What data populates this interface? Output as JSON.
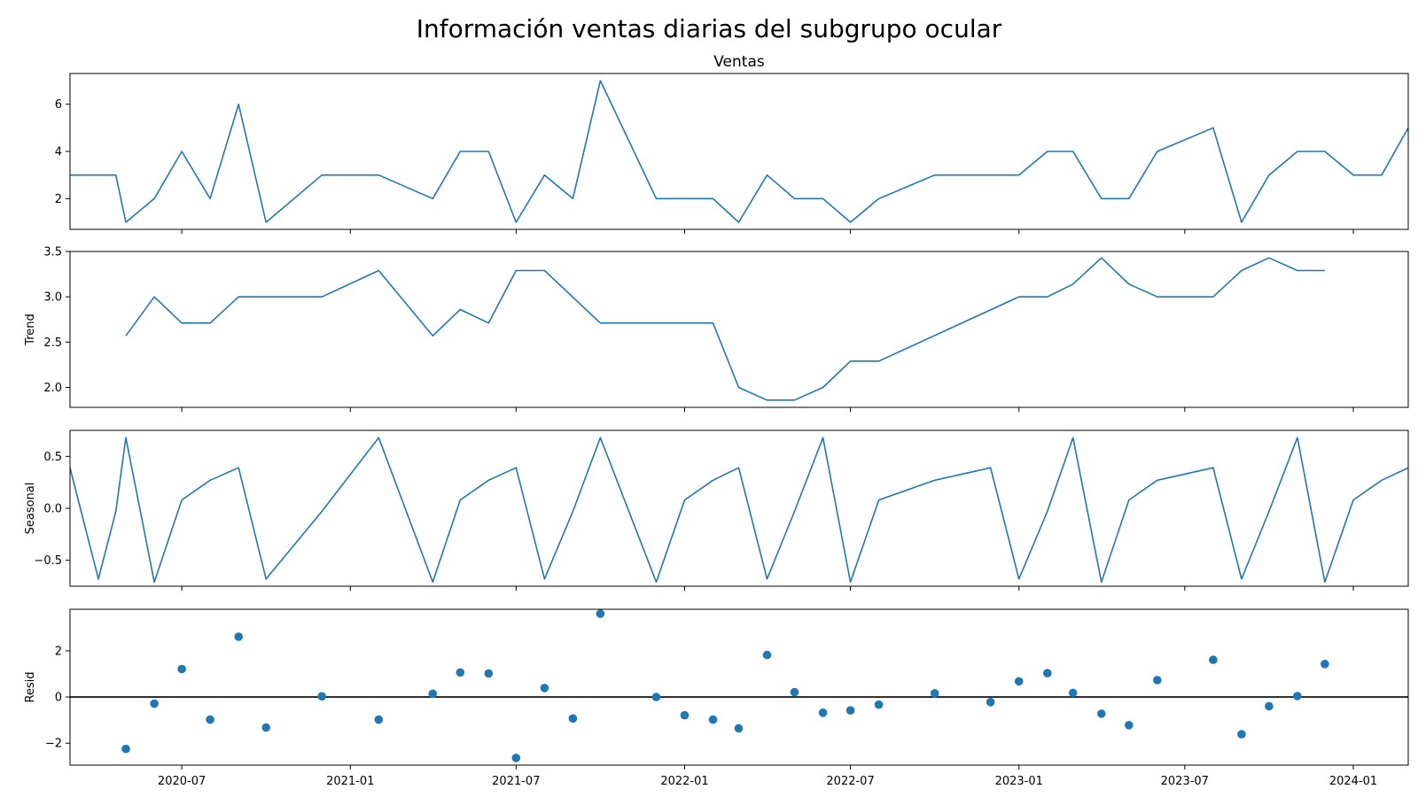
{
  "suptitle": "Información ventas diarias del subgrupo ocular",
  "colors": {
    "series": "#1f77b4",
    "axis": "#000000",
    "background": "#ffffff"
  },
  "chart_data": {
    "type": "line",
    "x_axis": {
      "kind": "date",
      "range": [
        "2020-03-01",
        "2024-03-01"
      ],
      "ticks": [
        "2020-07-01",
        "2021-01-01",
        "2021-07-01",
        "2022-01-01",
        "2022-07-01",
        "2023-01-01",
        "2023-07-01",
        "2024-01-01"
      ],
      "tick_labels": [
        "2020-07",
        "2021-01",
        "2021-07",
        "2022-01",
        "2022-07",
        "2023-01",
        "2023-07",
        "2024-01"
      ]
    },
    "panels": [
      {
        "title": "Ventas",
        "ylabel": "",
        "type": "line",
        "ylim": [
          0.7,
          7.3
        ],
        "yticks": [
          2,
          4,
          6
        ],
        "ytick_labels": [
          "2",
          "4",
          "6"
        ],
        "points": [
          [
            "2020-03-01",
            3
          ],
          [
            "2020-03-31",
            3
          ],
          [
            "2020-04-20",
            3
          ],
          [
            "2020-05-01",
            1
          ],
          [
            "2020-06-01",
            2
          ],
          [
            "2020-07-01",
            4
          ],
          [
            "2020-08-01",
            2
          ],
          [
            "2020-09-01",
            6
          ],
          [
            "2020-10-01",
            1
          ],
          [
            "2020-12-01",
            3
          ],
          [
            "2021-02-01",
            3
          ],
          [
            "2021-04-01",
            2
          ],
          [
            "2021-05-01",
            4
          ],
          [
            "2021-06-01",
            4
          ],
          [
            "2021-07-01",
            1
          ],
          [
            "2021-08-01",
            3
          ],
          [
            "2021-09-01",
            2
          ],
          [
            "2021-10-01",
            7
          ],
          [
            "2021-12-01",
            2
          ],
          [
            "2022-01-01",
            2
          ],
          [
            "2022-02-01",
            2
          ],
          [
            "2022-03-01",
            1
          ],
          [
            "2022-04-01",
            3
          ],
          [
            "2022-05-01",
            2
          ],
          [
            "2022-06-01",
            2
          ],
          [
            "2022-07-01",
            1
          ],
          [
            "2022-08-01",
            2
          ],
          [
            "2022-10-01",
            3
          ],
          [
            "2022-12-01",
            3
          ],
          [
            "2023-01-01",
            3
          ],
          [
            "2023-02-01",
            4
          ],
          [
            "2023-03-01",
            4
          ],
          [
            "2023-04-01",
            2
          ],
          [
            "2023-05-01",
            2
          ],
          [
            "2023-06-01",
            4
          ],
          [
            "2023-08-01",
            5
          ],
          [
            "2023-09-01",
            1
          ],
          [
            "2023-10-01",
            3
          ],
          [
            "2023-11-01",
            4
          ],
          [
            "2023-12-01",
            4
          ],
          [
            "2024-01-01",
            3
          ],
          [
            "2024-02-01",
            3
          ],
          [
            "2024-03-01",
            5
          ]
        ]
      },
      {
        "title": "",
        "ylabel": "Trend",
        "type": "line",
        "ylim": [
          1.78,
          3.5
        ],
        "yticks": [
          2.0,
          2.5,
          3.0,
          3.5
        ],
        "ytick_labels": [
          "2.0",
          "2.5",
          "3.0",
          "3.5"
        ],
        "points": [
          [
            "2020-05-01",
            2.57
          ],
          [
            "2020-06-01",
            3.0
          ],
          [
            "2020-07-01",
            2.71
          ],
          [
            "2020-08-01",
            2.71
          ],
          [
            "2020-09-01",
            3.0
          ],
          [
            "2020-12-01",
            3.0
          ],
          [
            "2021-02-01",
            3.29
          ],
          [
            "2021-04-01",
            2.57
          ],
          [
            "2021-05-01",
            2.86
          ],
          [
            "2021-06-01",
            2.71
          ],
          [
            "2021-07-01",
            3.29
          ],
          [
            "2021-08-01",
            3.29
          ],
          [
            "2021-10-01",
            2.71
          ],
          [
            "2022-02-01",
            2.71
          ],
          [
            "2022-03-01",
            2.0
          ],
          [
            "2022-04-01",
            1.86
          ],
          [
            "2022-05-01",
            1.86
          ],
          [
            "2022-06-01",
            2.0
          ],
          [
            "2022-07-01",
            2.29
          ],
          [
            "2022-08-01",
            2.29
          ],
          [
            "2023-01-01",
            3.0
          ],
          [
            "2023-02-01",
            3.0
          ],
          [
            "2023-03-01",
            3.14
          ],
          [
            "2023-04-01",
            3.43
          ],
          [
            "2023-05-01",
            3.14
          ],
          [
            "2023-06-01",
            3.0
          ],
          [
            "2023-08-01",
            3.0
          ],
          [
            "2023-09-01",
            3.29
          ],
          [
            "2023-10-01",
            3.43
          ],
          [
            "2023-11-01",
            3.29
          ],
          [
            "2023-12-01",
            3.29
          ]
        ]
      },
      {
        "title": "",
        "ylabel": "Seasonal",
        "type": "line",
        "ylim": [
          -0.75,
          0.75
        ],
        "yticks": [
          -0.5,
          0.0,
          0.5
        ],
        "ytick_labels": [
          "−0.5",
          "0.0",
          "0.5"
        ],
        "points": [
          [
            "2020-03-01",
            0.39
          ],
          [
            "2020-04-01",
            -0.68
          ],
          [
            "2020-04-20",
            -0.03
          ],
          [
            "2020-05-01",
            0.68
          ],
          [
            "2020-06-01",
            -0.71
          ],
          [
            "2020-07-01",
            0.08
          ],
          [
            "2020-08-01",
            0.27
          ],
          [
            "2020-09-01",
            0.39
          ],
          [
            "2020-10-01",
            -0.68
          ],
          [
            "2020-12-01",
            -0.03
          ],
          [
            "2021-02-01",
            0.68
          ],
          [
            "2021-04-01",
            -0.71
          ],
          [
            "2021-05-01",
            0.08
          ],
          [
            "2021-06-01",
            0.27
          ],
          [
            "2021-07-01",
            0.39
          ],
          [
            "2021-08-01",
            -0.68
          ],
          [
            "2021-09-01",
            -0.03
          ],
          [
            "2021-10-01",
            0.68
          ],
          [
            "2021-12-01",
            -0.71
          ],
          [
            "2022-01-01",
            0.08
          ],
          [
            "2022-02-01",
            0.27
          ],
          [
            "2022-03-01",
            0.39
          ],
          [
            "2022-04-01",
            -0.68
          ],
          [
            "2022-05-01",
            -0.03
          ],
          [
            "2022-06-01",
            0.68
          ],
          [
            "2022-07-01",
            -0.71
          ],
          [
            "2022-08-01",
            0.08
          ],
          [
            "2022-10-01",
            0.27
          ],
          [
            "2022-12-01",
            0.39
          ],
          [
            "2023-01-01",
            -0.68
          ],
          [
            "2023-02-01",
            -0.03
          ],
          [
            "2023-03-01",
            0.68
          ],
          [
            "2023-04-01",
            -0.71
          ],
          [
            "2023-05-01",
            0.08
          ],
          [
            "2023-06-01",
            0.27
          ],
          [
            "2023-08-01",
            0.39
          ],
          [
            "2023-09-01",
            -0.68
          ],
          [
            "2023-10-01",
            -0.03
          ],
          [
            "2023-11-01",
            0.68
          ],
          [
            "2023-12-01",
            -0.71
          ],
          [
            "2024-01-01",
            0.08
          ],
          [
            "2024-02-01",
            0.27
          ],
          [
            "2024-03-01",
            0.39
          ]
        ]
      },
      {
        "title": "",
        "ylabel": "Resid",
        "type": "scatter",
        "ylim": [
          -2.95,
          3.8
        ],
        "yticks": [
          -2,
          0,
          2
        ],
        "ytick_labels": [
          "−2",
          "0",
          "2"
        ],
        "baseline": 0,
        "points": [
          [
            "2020-05-01",
            -2.25
          ],
          [
            "2020-06-01",
            -0.29
          ],
          [
            "2020-07-01",
            1.21
          ],
          [
            "2020-08-01",
            -0.98
          ],
          [
            "2020-09-01",
            2.61
          ],
          [
            "2020-10-01",
            -1.32
          ],
          [
            "2020-12-01",
            0.03
          ],
          [
            "2021-02-01",
            -0.98
          ],
          [
            "2021-04-01",
            0.14
          ],
          [
            "2021-05-01",
            1.06
          ],
          [
            "2021-06-01",
            1.02
          ],
          [
            "2021-07-01",
            -2.64
          ],
          [
            "2021-08-01",
            0.39
          ],
          [
            "2021-09-01",
            -0.93
          ],
          [
            "2021-10-01",
            3.61
          ],
          [
            "2021-12-01",
            0.0
          ],
          [
            "2022-01-01",
            -0.79
          ],
          [
            "2022-02-01",
            -0.98
          ],
          [
            "2022-03-01",
            -1.36
          ],
          [
            "2022-04-01",
            1.82
          ],
          [
            "2022-05-01",
            0.21
          ],
          [
            "2022-06-01",
            -0.68
          ],
          [
            "2022-07-01",
            -0.58
          ],
          [
            "2022-08-01",
            -0.33
          ],
          [
            "2022-10-01",
            0.16
          ],
          [
            "2022-12-01",
            -0.22
          ],
          [
            "2023-01-01",
            0.68
          ],
          [
            "2023-02-01",
            1.03
          ],
          [
            "2023-03-01",
            0.18
          ],
          [
            "2023-04-01",
            -0.72
          ],
          [
            "2023-05-01",
            -1.22
          ],
          [
            "2023-06-01",
            0.73
          ],
          [
            "2023-08-01",
            1.61
          ],
          [
            "2023-09-01",
            -1.61
          ],
          [
            "2023-10-01",
            -0.4
          ],
          [
            "2023-11-01",
            0.04
          ],
          [
            "2023-12-01",
            1.43
          ]
        ]
      }
    ]
  }
}
